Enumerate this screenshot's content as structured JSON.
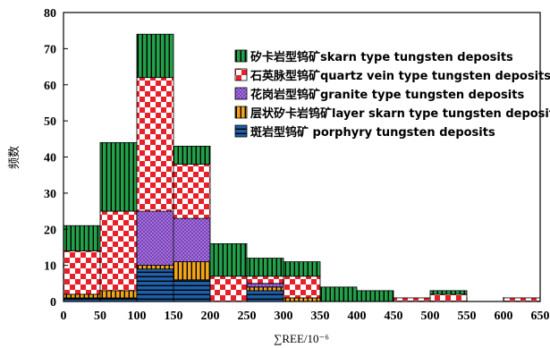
{
  "chart_data": {
    "type": "bar",
    "stacked": true,
    "title": "",
    "xlabel": "∑REE/10⁻⁶",
    "ylabel": "频数",
    "xlim": [
      0,
      650
    ],
    "ylim": [
      0,
      80
    ],
    "bin_width": 50,
    "x_ticks": [
      "0",
      "50",
      "100",
      "150",
      "200",
      "250",
      "300",
      "350",
      "400",
      "450",
      "500",
      "550",
      "600",
      "650"
    ],
    "y_ticks": [
      "0",
      "10",
      "20",
      "30",
      "40",
      "50",
      "60",
      "70",
      "80"
    ],
    "bins": [
      0,
      50,
      100,
      150,
      200,
      250,
      300,
      350,
      400,
      450,
      500,
      550,
      600
    ],
    "legend_position": "top-right",
    "series": [
      {
        "name": "斑岩型钨矿  porphyry tungsten deposits",
        "pattern": "horizontal-stripes",
        "color": "#1f5fa8",
        "values": [
          1,
          1,
          9,
          6,
          0,
          3,
          0,
          0,
          0,
          0,
          0,
          0,
          0
        ]
      },
      {
        "name": "层状矽卡岩钨矿layer skarn type tungsten deposits",
        "pattern": "vertical-stripes-orange",
        "color": "#f2a51a",
        "values": [
          1,
          2,
          1,
          5,
          0,
          1,
          1,
          0,
          0,
          0,
          0,
          0,
          0
        ]
      },
      {
        "name": "花岗岩型钨矿granite type tungsten deposits",
        "pattern": "dots-purple",
        "color": "#7b3fbf",
        "values": [
          0,
          0,
          15,
          12,
          0,
          1,
          0,
          0,
          0,
          0,
          0,
          0,
          0
        ]
      },
      {
        "name": "石英脉型钨矿quartz vein type tungsten deposits",
        "pattern": "checker-red",
        "color": "#e8202a",
        "values": [
          12,
          22,
          37,
          15,
          7,
          2,
          6,
          0,
          0,
          1,
          2,
          0,
          1
        ]
      },
      {
        "name": "矽卡岩型钨矿skarn type tungsten deposits",
        "pattern": "vertical-stripes-green",
        "color": "#23a04a",
        "values": [
          7,
          19,
          12,
          5,
          9,
          5,
          4,
          4,
          3,
          0,
          1,
          0,
          0
        ]
      }
    ],
    "legend_order": [
      4,
      3,
      2,
      1,
      0
    ]
  }
}
